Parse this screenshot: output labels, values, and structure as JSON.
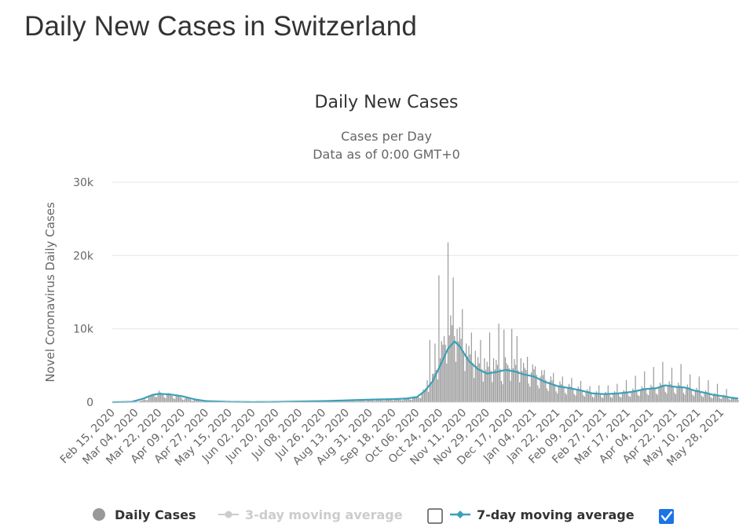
{
  "page": {
    "title": "Daily New Cases in Switzerland"
  },
  "colors": {
    "bars": "#999999",
    "ma7": "#3ba0b8",
    "ma3_disabled": "#cccccc",
    "grid": "#e6e6e6",
    "checkbox": "#1a73e8"
  },
  "legend": {
    "daily": {
      "label": "Daily Cases"
    },
    "ma3": {
      "label": "3-day moving average",
      "checked": false
    },
    "ma7": {
      "label": "7-day moving average",
      "checked": true
    }
  },
  "chart_data": {
    "type": "bar",
    "title": "Daily New Cases",
    "subtitle_lines": [
      "Cases per Day",
      "Data as of 0:00 GMT+0"
    ],
    "xlabel": "",
    "ylabel": "Novel Coronavirus Daily Cases",
    "ylim": [
      0,
      30000
    ],
    "y_ticks": [
      {
        "value": 0,
        "label": "0"
      },
      {
        "value": 10000,
        "label": "10k"
      },
      {
        "value": 20000,
        "label": "20k"
      },
      {
        "value": 30000,
        "label": "30k"
      }
    ],
    "x_range": [
      "2020-02-15",
      "2021-06-10"
    ],
    "x_tick_labels": [
      "Feb 15, 2020",
      "Mar 04, 2020",
      "Mar 22, 2020",
      "Apr 09, 2020",
      "Apr 27, 2020",
      "May 15, 2020",
      "Jun 02, 2020",
      "Jun 20, 2020",
      "Jul 08, 2020",
      "Jul 26, 2020",
      "Aug 13, 2020",
      "Aug 31, 2020",
      "Sep 18, 2020",
      "Oct 06, 2020",
      "Oct 24, 2020",
      "Nov 11, 2020",
      "Nov 29, 2020",
      "Dec 17, 2020",
      "Jan 04, 2021",
      "Jan 22, 2021",
      "Feb 09, 2021",
      "Feb 27, 2021",
      "Mar 17, 2021",
      "Apr 04, 2021",
      "Apr 22, 2021",
      "May 10, 2021",
      "May 28, 2021"
    ],
    "daily_cases_anchors": [
      [
        "2020-02-15",
        0
      ],
      [
        "2020-02-28",
        10
      ],
      [
        "2020-03-08",
        150
      ],
      [
        "2020-03-15",
        700
      ],
      [
        "2020-03-20",
        1300
      ],
      [
        "2020-03-25",
        1100
      ],
      [
        "2020-04-01",
        900
      ],
      [
        "2020-04-09",
        600
      ],
      [
        "2020-04-18",
        300
      ],
      [
        "2020-04-27",
        120
      ],
      [
        "2020-05-10",
        40
      ],
      [
        "2020-06-01",
        20
      ],
      [
        "2020-06-20",
        30
      ],
      [
        "2020-07-08",
        100
      ],
      [
        "2020-07-26",
        150
      ],
      [
        "2020-08-13",
        250
      ],
      [
        "2020-08-31",
        320
      ],
      [
        "2020-09-18",
        420
      ],
      [
        "2020-09-28",
        480
      ],
      [
        "2020-10-06",
        700
      ],
      [
        "2020-10-12",
        1500
      ],
      [
        "2020-10-18",
        3000
      ],
      [
        "2020-10-24",
        6000
      ],
      [
        "2020-10-30",
        9000
      ],
      [
        "2020-11-03",
        9500
      ],
      [
        "2020-11-08",
        8000
      ],
      [
        "2020-11-15",
        6000
      ],
      [
        "2020-11-22",
        4800
      ],
      [
        "2020-11-29",
        4300
      ],
      [
        "2020-12-06",
        4500
      ],
      [
        "2020-12-13",
        4800
      ],
      [
        "2020-12-20",
        4600
      ],
      [
        "2020-12-27",
        4200
      ],
      [
        "2021-01-04",
        4000
      ],
      [
        "2021-01-12",
        3200
      ],
      [
        "2021-01-22",
        2300
      ],
      [
        "2021-02-01",
        1900
      ],
      [
        "2021-02-09",
        1600
      ],
      [
        "2021-02-18",
        1200
      ],
      [
        "2021-02-27",
        1100
      ],
      [
        "2021-03-10",
        1200
      ],
      [
        "2021-03-20",
        1400
      ],
      [
        "2021-03-31",
        1800
      ],
      [
        "2021-04-08",
        1900
      ],
      [
        "2021-04-15",
        2300
      ],
      [
        "2021-04-22",
        2100
      ],
      [
        "2021-04-30",
        2000
      ],
      [
        "2021-05-07",
        1600
      ],
      [
        "2021-05-15",
        1300
      ],
      [
        "2021-05-22",
        1000
      ],
      [
        "2021-05-30",
        800
      ],
      [
        "2021-06-05",
        600
      ],
      [
        "2021-06-10",
        500
      ]
    ],
    "spikes": [
      [
        "2020-10-14",
        3000
      ],
      [
        "2020-10-16",
        8500
      ],
      [
        "2020-10-20",
        8000
      ],
      [
        "2020-10-23",
        17300
      ],
      [
        "2020-10-27",
        9000
      ],
      [
        "2020-10-30",
        21800
      ],
      [
        "2020-11-03",
        17000
      ],
      [
        "2020-11-06",
        10000
      ],
      [
        "2020-11-10",
        12700
      ],
      [
        "2020-11-13",
        8000
      ],
      [
        "2020-11-17",
        9500
      ],
      [
        "2020-11-20",
        7000
      ],
      [
        "2020-11-24",
        8500
      ],
      [
        "2020-11-27",
        6000
      ],
      [
        "2020-12-01",
        9500
      ],
      [
        "2020-12-04",
        6000
      ],
      [
        "2020-12-08",
        10700
      ],
      [
        "2020-12-12",
        9900
      ],
      [
        "2020-12-18",
        10000
      ],
      [
        "2020-12-22",
        9000
      ],
      [
        "2020-12-25",
        6000
      ],
      [
        "2020-12-30",
        6200
      ],
      [
        "2021-01-05",
        4900
      ],
      [
        "2021-01-12",
        4400
      ],
      [
        "2021-01-19",
        4000
      ],
      [
        "2021-01-26",
        3500
      ],
      [
        "2021-02-02",
        3300
      ],
      [
        "2021-02-09",
        2900
      ],
      [
        "2021-02-16",
        2200
      ],
      [
        "2021-02-23",
        2300
      ],
      [
        "2021-03-02",
        2300
      ],
      [
        "2021-03-09",
        2500
      ],
      [
        "2021-03-16",
        3000
      ],
      [
        "2021-03-23",
        3600
      ],
      [
        "2021-03-30",
        4200
      ],
      [
        "2021-04-06",
        4800
      ],
      [
        "2021-04-13",
        5500
      ],
      [
        "2021-04-20",
        4700
      ],
      [
        "2021-04-27",
        5200
      ],
      [
        "2021-05-04",
        3800
      ],
      [
        "2021-05-11",
        3500
      ],
      [
        "2021-05-18",
        3000
      ],
      [
        "2021-05-25",
        2500
      ],
      [
        "2021-06-01",
        1800
      ]
    ],
    "ma7_anchors": [
      [
        "2020-02-15",
        0
      ],
      [
        "2020-03-01",
        50
      ],
      [
        "2020-03-10",
        500
      ],
      [
        "2020-03-17",
        1000
      ],
      [
        "2020-03-22",
        1150
      ],
      [
        "2020-03-31",
        1050
      ],
      [
        "2020-04-09",
        800
      ],
      [
        "2020-04-18",
        400
      ],
      [
        "2020-04-27",
        150
      ],
      [
        "2020-05-15",
        50
      ],
      [
        "2020-06-02",
        20
      ],
      [
        "2020-06-20",
        40
      ],
      [
        "2020-07-08",
        100
      ],
      [
        "2020-07-26",
        150
      ],
      [
        "2020-08-13",
        250
      ],
      [
        "2020-08-31",
        350
      ],
      [
        "2020-09-18",
        420
      ],
      [
        "2020-09-28",
        500
      ],
      [
        "2020-10-06",
        700
      ],
      [
        "2020-10-12",
        1500
      ],
      [
        "2020-10-18",
        2800
      ],
      [
        "2020-10-24",
        5000
      ],
      [
        "2020-10-30",
        7300
      ],
      [
        "2020-11-04",
        8300
      ],
      [
        "2020-11-08",
        7600
      ],
      [
        "2020-11-15",
        5600
      ],
      [
        "2020-11-22",
        4500
      ],
      [
        "2020-11-29",
        3900
      ],
      [
        "2020-12-06",
        4100
      ],
      [
        "2020-12-13",
        4400
      ],
      [
        "2020-12-20",
        4200
      ],
      [
        "2020-12-27",
        3800
      ],
      [
        "2021-01-04",
        3500
      ],
      [
        "2021-01-12",
        2800
      ],
      [
        "2021-01-22",
        2200
      ],
      [
        "2021-02-01",
        1900
      ],
      [
        "2021-02-09",
        1600
      ],
      [
        "2021-02-18",
        1200
      ],
      [
        "2021-02-27",
        1100
      ],
      [
        "2021-03-10",
        1200
      ],
      [
        "2021-03-20",
        1400
      ],
      [
        "2021-03-31",
        1800
      ],
      [
        "2021-04-08",
        1900
      ],
      [
        "2021-04-15",
        2300
      ],
      [
        "2021-04-22",
        2100
      ],
      [
        "2021-04-30",
        2000
      ],
      [
        "2021-05-07",
        1600
      ],
      [
        "2021-05-15",
        1300
      ],
      [
        "2021-05-22",
        1000
      ],
      [
        "2021-05-30",
        800
      ],
      [
        "2021-06-05",
        600
      ],
      [
        "2021-06-10",
        500
      ]
    ],
    "legend_position": "bottom"
  }
}
